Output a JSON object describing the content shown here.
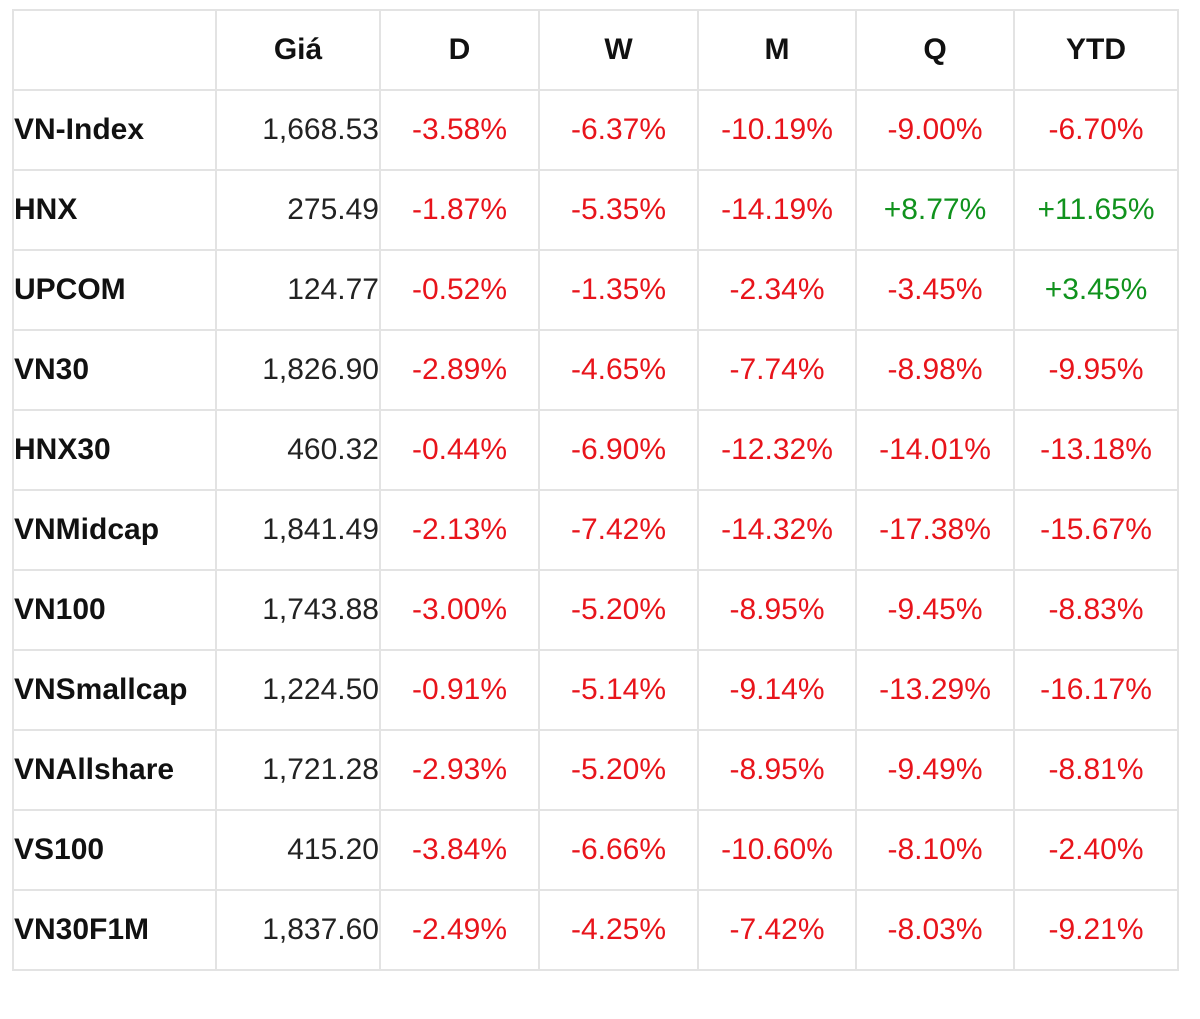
{
  "headers": [
    "",
    "Giá",
    "D",
    "W",
    "M",
    "Q",
    "YTD"
  ],
  "colors": {
    "negative": "#e8141b",
    "positive": "#10921d"
  },
  "rows": [
    {
      "name": "VN-Index",
      "price": "1,668.53",
      "d": "-3.58%",
      "w": "-6.37%",
      "m": "-10.19%",
      "q": "-9.00%",
      "ytd": "-6.70%"
    },
    {
      "name": "HNX",
      "price": "275.49",
      "d": "-1.87%",
      "w": "-5.35%",
      "m": "-14.19%",
      "q": "+8.77%",
      "ytd": "+11.65%"
    },
    {
      "name": "UPCOM",
      "price": "124.77",
      "d": "-0.52%",
      "w": "-1.35%",
      "m": "-2.34%",
      "q": "-3.45%",
      "ytd": "+3.45%"
    },
    {
      "name": "VN30",
      "price": "1,826.90",
      "d": "-2.89%",
      "w": "-4.65%",
      "m": "-7.74%",
      "q": "-8.98%",
      "ytd": "-9.95%"
    },
    {
      "name": "HNX30",
      "price": "460.32",
      "d": "-0.44%",
      "w": "-6.90%",
      "m": "-12.32%",
      "q": "-14.01%",
      "ytd": "-13.18%"
    },
    {
      "name": "VNMidcap",
      "price": "1,841.49",
      "d": "-2.13%",
      "w": "-7.42%",
      "m": "-14.32%",
      "q": "-17.38%",
      "ytd": "-15.67%"
    },
    {
      "name": "VN100",
      "price": "1,743.88",
      "d": "-3.00%",
      "w": "-5.20%",
      "m": "-8.95%",
      "q": "-9.45%",
      "ytd": "-8.83%"
    },
    {
      "name": "VNSmallcap",
      "price": "1,224.50",
      "d": "-0.91%",
      "w": "-5.14%",
      "m": "-9.14%",
      "q": "-13.29%",
      "ytd": "-16.17%"
    },
    {
      "name": "VNAllshare",
      "price": "1,721.28",
      "d": "-2.93%",
      "w": "-5.20%",
      "m": "-8.95%",
      "q": "-9.49%",
      "ytd": "-8.81%"
    },
    {
      "name": "VS100",
      "price": "415.20",
      "d": "-3.84%",
      "w": "-6.66%",
      "m": "-10.60%",
      "q": "-8.10%",
      "ytd": "-2.40%"
    },
    {
      "name": "VN30F1M",
      "price": "1,837.60",
      "d": "-2.49%",
      "w": "-4.25%",
      "m": "-7.42%",
      "q": "-8.03%",
      "ytd": "-9.21%"
    }
  ]
}
